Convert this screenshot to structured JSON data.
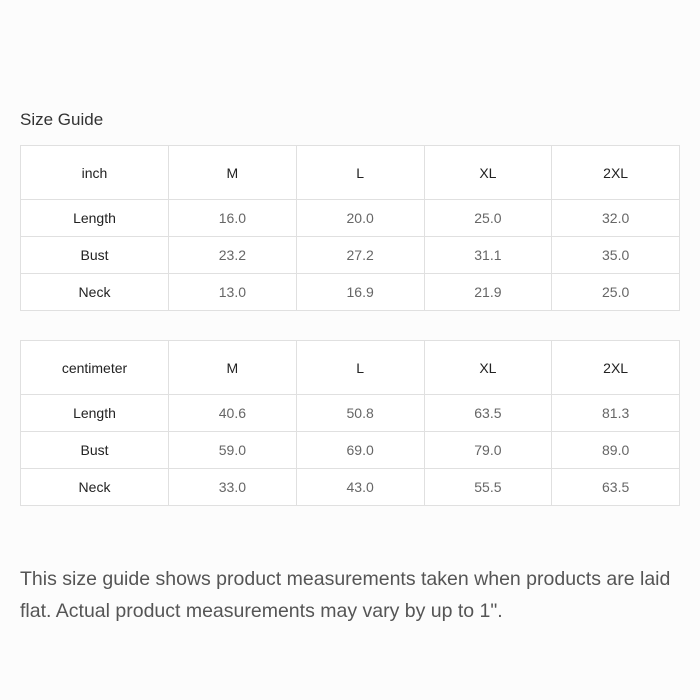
{
  "title": "Size Guide",
  "tables": [
    {
      "headers": [
        "inch",
        "M",
        "L",
        "XL",
        "2XL"
      ],
      "rows": [
        [
          "Length",
          "16.0",
          "20.0",
          "25.0",
          "32.0"
        ],
        [
          "Bust",
          "23.2",
          "27.2",
          "31.1",
          "35.0"
        ],
        [
          "Neck",
          "13.0",
          "16.9",
          "21.9",
          "25.0"
        ]
      ]
    },
    {
      "headers": [
        "centimeter",
        "M",
        "L",
        "XL",
        "2XL"
      ],
      "rows": [
        [
          "Length",
          "40.6",
          "50.8",
          "63.5",
          "81.3"
        ],
        [
          "Bust",
          "59.0",
          "69.0",
          "79.0",
          "89.0"
        ],
        [
          "Neck",
          "33.0",
          "43.0",
          "55.5",
          "63.5"
        ]
      ]
    }
  ],
  "note": "This size guide shows product measurements taken when products are laid flat. Actual product measurements may vary by up to 1\"."
}
